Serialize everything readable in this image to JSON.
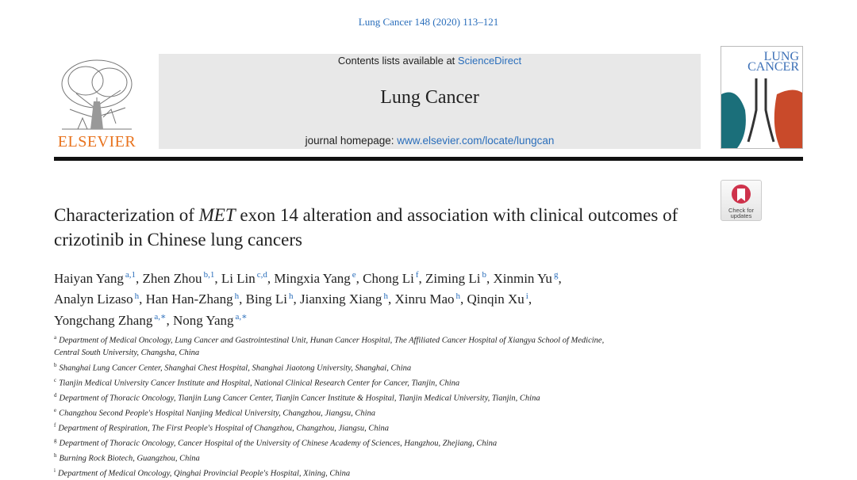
{
  "citation": "Lung Cancer 148 (2020) 113–121",
  "header": {
    "contents_prefix": "Contents lists available at",
    "contents_link": "ScienceDirect",
    "journal": "Lung Cancer",
    "homepage_prefix": "journal homepage:",
    "homepage_link": "www.elsevier.com/locate/lungcan",
    "publisher": "ELSEVIER",
    "cover_title": [
      "LUNG",
      "CANCER"
    ],
    "check_updates": [
      "Check for",
      "updates"
    ]
  },
  "title": {
    "start": "Characterization of",
    "italic": "MET",
    "end": "exon 14 alteration and association with clinical outcomes of crizotinib in Chinese lung cancers"
  },
  "author_lines": [
    [
      {
        "name": "Haiyan Yang",
        "sup": "a,1",
        "sep": ","
      },
      {
        "name": "Zhen Zhou",
        "sup": "b,1",
        "sep": ","
      },
      {
        "name": "Li Lin",
        "sup": "c,d",
        "sep": ","
      },
      {
        "name": "Mingxia Yang",
        "sup": "e",
        "sep": ","
      },
      {
        "name": "Chong Li",
        "sup": "f",
        "sep": ","
      },
      {
        "name": "Ziming Li",
        "sup": "b",
        "sep": ","
      },
      {
        "name": "Xinmin Yu",
        "sup": "g",
        "sep": ","
      }
    ],
    [
      {
        "name": "Analyn Lizaso",
        "sup": "h",
        "sep": ","
      },
      {
        "name": "Han Han-Zhang",
        "sup": "h",
        "sep": ","
      },
      {
        "name": "Bing Li",
        "sup": "h",
        "sep": ","
      },
      {
        "name": "Jianxing Xiang",
        "sup": "h",
        "sep": ","
      },
      {
        "name": "Xinru Mao",
        "sup": "h",
        "sep": ","
      },
      {
        "name": "Qinqin Xu",
        "sup": "i",
        "sep": ","
      }
    ],
    [
      {
        "name": "Yongchang Zhang",
        "sup": "a,∗",
        "sep": ","
      },
      {
        "name": "Nong Yang",
        "sup": "a,∗"
      }
    ]
  ],
  "affiliations": [
    {
      "label": "a",
      "lines": [
        "Department of Medical Oncology, Lung Cancer and Gastrointestinal Unit, Hunan Cancer Hospital, The Affiliated Cancer Hospital of Xiangya School of Medicine,",
        "Central South University, Changsha, China"
      ]
    },
    {
      "label": "b",
      "lines": [
        "Shanghai Lung Cancer Center, Shanghai Chest Hospital, Shanghai Jiaotong University, Shanghai, China"
      ]
    },
    {
      "label": "c",
      "lines": [
        "Tianjin Medical University Cancer Institute and Hospital, National Clinical Research Center for Cancer, Tianjin, China"
      ]
    },
    {
      "label": "d",
      "lines": [
        "Department of Thoracic Oncology, Tianjin Lung Cancer Center, Tianjin Cancer Institute & Hospital, Tianjin Medical University, Tianjin, China"
      ]
    },
    {
      "label": "e",
      "lines": [
        "Changzhou Second People's Hospital Nanjing Medical University, Changzhou, Jiangsu, China"
      ]
    },
    {
      "label": "f",
      "lines": [
        "Department of Respiration, The First People's Hospital of Changzhou, Changzhou, Jiangsu, China"
      ]
    },
    {
      "label": "g",
      "lines": [
        "Department of Thoracic Oncology, Cancer Hospital of the University of Chinese Academy of Sciences, Hangzhou, Zhejiang, China"
      ]
    },
    {
      "label": "h",
      "lines": [
        "Burning Rock Biotech, Guangzhou, China"
      ]
    },
    {
      "label": "i",
      "lines": [
        "Department of Medical Oncology, Qinghai Provincial People's Hospital, Xining, China"
      ]
    }
  ]
}
